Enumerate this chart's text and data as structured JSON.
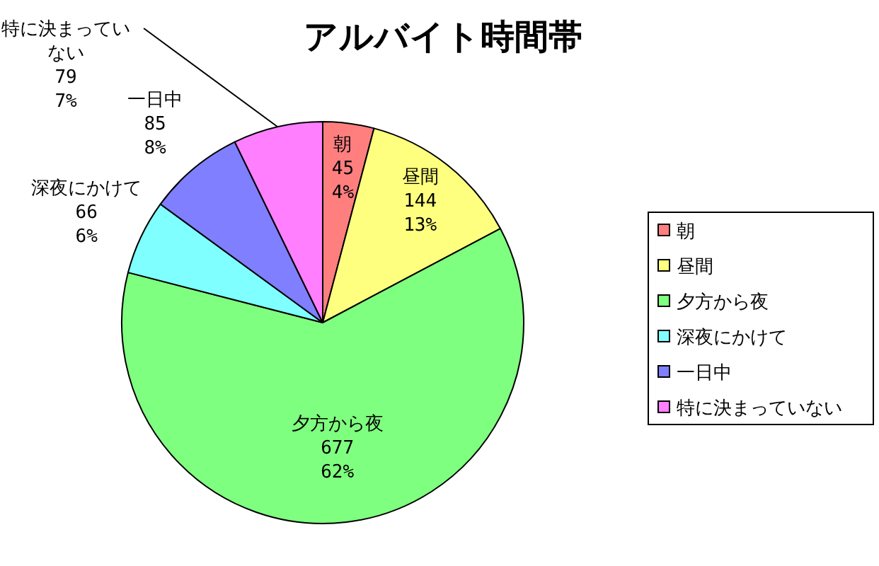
{
  "chart_data": {
    "type": "pie",
    "title": "アルバイト時間帯",
    "categories": [
      "朝",
      "昼間",
      "夕方から夜",
      "深夜にかけて",
      "一日中",
      "特に決まっていない"
    ],
    "values": [
      45,
      144,
      677,
      66,
      85,
      79
    ],
    "value_labels": [
      "45\n4%",
      "144\n13%",
      "677\n62%",
      "66\n6%",
      "85\n8%",
      "79\n7%"
    ],
    "colors": [
      "#ff7f7f",
      "#ffff7f",
      "#7fff7f",
      "#7fffff",
      "#7f7fff",
      "#ff7fff"
    ],
    "legend": "right"
  }
}
